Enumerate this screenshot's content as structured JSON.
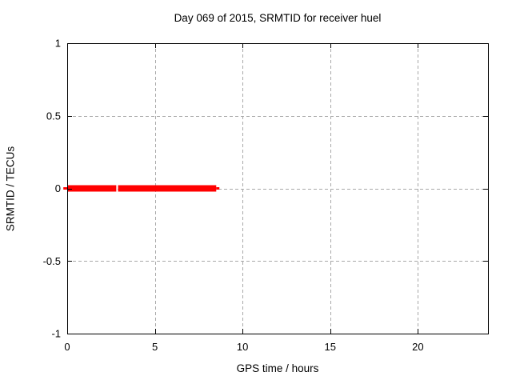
{
  "page": {
    "background": "#ffffff"
  },
  "chart_data": {
    "type": "line",
    "title": "Day 069 of 2015, SRMTID for receiver huel",
    "xlabel": "GPS time / hours",
    "ylabel": "SRMTID / TECUs",
    "xlim": [
      0,
      24
    ],
    "ylim": [
      -1,
      1
    ],
    "xticks": [
      0,
      5,
      10,
      15,
      20
    ],
    "xtick_labels": [
      "0",
      "5",
      "10",
      "15",
      "20"
    ],
    "yticks": [
      -1,
      -0.5,
      0,
      0.5,
      1
    ],
    "ytick_labels": [
      "-1",
      "-0.5",
      "0",
      "0.5",
      "1"
    ],
    "grid": true,
    "grid_color": "#a8a8a8",
    "axis_color": "#000000",
    "legend": "none",
    "series": [
      {
        "name": "SRMTID",
        "color": "#ff0000",
        "linewidth": 8,
        "segments": [
          {
            "x0": 0,
            "x1": 2.8,
            "y": 0
          },
          {
            "x0": 2.9,
            "x1": 8.5,
            "y": 0
          }
        ],
        "thin_marks": [
          {
            "x0": -0.22,
            "x1": 0,
            "y": 0
          },
          {
            "x0": 8.5,
            "x1": 8.68,
            "y": 0
          }
        ]
      }
    ]
  }
}
